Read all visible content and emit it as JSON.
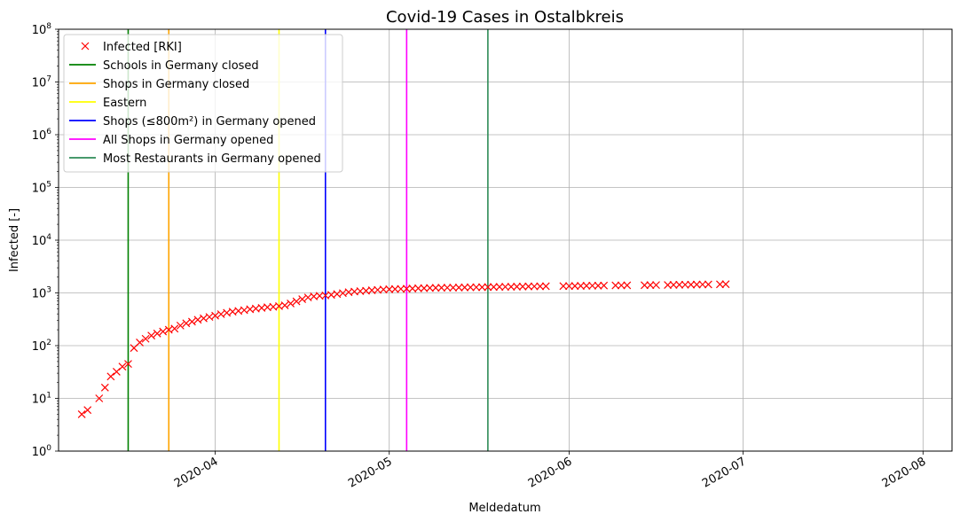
{
  "chart_data": {
    "type": "scatter",
    "title": "Covid-19 Cases in Ostalbkreis",
    "xlabel": "Meldedatum",
    "ylabel": "Infected [-]",
    "y_scale": "log",
    "ylim": [
      1,
      100000000
    ],
    "xlim": [
      "2020-03-05",
      "2020-08-06"
    ],
    "grid": true,
    "legend_position": "upper-left",
    "x_ticks": [
      "2020-04",
      "2020-05",
      "2020-06",
      "2020-07",
      "2020-08"
    ],
    "y_ticks": [
      "10^0",
      "10^1",
      "10^2",
      "10^3",
      "10^4",
      "10^5",
      "10^6",
      "10^7",
      "10^8"
    ],
    "series": [
      {
        "name": "Infected [RKI]",
        "marker": "x",
        "color": "#ff0000",
        "points": [
          [
            "2020-03-09",
            5
          ],
          [
            "2020-03-10",
            6
          ],
          [
            "2020-03-12",
            10
          ],
          [
            "2020-03-13",
            16
          ],
          [
            "2020-03-14",
            26
          ],
          [
            "2020-03-15",
            32
          ],
          [
            "2020-03-16",
            40
          ],
          [
            "2020-03-17",
            45
          ],
          [
            "2020-03-18",
            90
          ],
          [
            "2020-03-19",
            115
          ],
          [
            "2020-03-20",
            135
          ],
          [
            "2020-03-21",
            155
          ],
          [
            "2020-03-22",
            170
          ],
          [
            "2020-03-23",
            185
          ],
          [
            "2020-03-24",
            200
          ],
          [
            "2020-03-25",
            210
          ],
          [
            "2020-03-26",
            240
          ],
          [
            "2020-03-27",
            265
          ],
          [
            "2020-03-28",
            285
          ],
          [
            "2020-03-29",
            310
          ],
          [
            "2020-03-30",
            330
          ],
          [
            "2020-03-31",
            350
          ],
          [
            "2020-04-01",
            370
          ],
          [
            "2020-04-02",
            395
          ],
          [
            "2020-04-03",
            420
          ],
          [
            "2020-04-04",
            440
          ],
          [
            "2020-04-05",
            455
          ],
          [
            "2020-04-06",
            470
          ],
          [
            "2020-04-07",
            490
          ],
          [
            "2020-04-08",
            505
          ],
          [
            "2020-04-09",
            520
          ],
          [
            "2020-04-10",
            535
          ],
          [
            "2020-04-11",
            545
          ],
          [
            "2020-04-12",
            560
          ],
          [
            "2020-04-13",
            580
          ],
          [
            "2020-04-14",
            630
          ],
          [
            "2020-04-15",
            690
          ],
          [
            "2020-04-16",
            760
          ],
          [
            "2020-04-17",
            820
          ],
          [
            "2020-04-18",
            860
          ],
          [
            "2020-04-19",
            880
          ],
          [
            "2020-04-20",
            895
          ],
          [
            "2020-04-21",
            920
          ],
          [
            "2020-04-22",
            950
          ],
          [
            "2020-04-23",
            990
          ],
          [
            "2020-04-24",
            1030
          ],
          [
            "2020-04-25",
            1060
          ],
          [
            "2020-04-26",
            1080
          ],
          [
            "2020-04-27",
            1100
          ],
          [
            "2020-04-28",
            1120
          ],
          [
            "2020-04-29",
            1140
          ],
          [
            "2020-04-30",
            1160
          ],
          [
            "2020-05-01",
            1170
          ],
          [
            "2020-05-02",
            1180
          ],
          [
            "2020-05-03",
            1190
          ],
          [
            "2020-05-04",
            1200
          ],
          [
            "2020-05-05",
            1210
          ],
          [
            "2020-05-06",
            1220
          ],
          [
            "2020-05-07",
            1230
          ],
          [
            "2020-05-08",
            1240
          ],
          [
            "2020-05-09",
            1245
          ],
          [
            "2020-05-10",
            1250
          ],
          [
            "2020-05-11",
            1255
          ],
          [
            "2020-05-12",
            1260
          ],
          [
            "2020-05-13",
            1265
          ],
          [
            "2020-05-14",
            1270
          ],
          [
            "2020-05-15",
            1275
          ],
          [
            "2020-05-16",
            1280
          ],
          [
            "2020-05-17",
            1285
          ],
          [
            "2020-05-18",
            1290
          ],
          [
            "2020-05-19",
            1295
          ],
          [
            "2020-05-20",
            1300
          ],
          [
            "2020-05-21",
            1305
          ],
          [
            "2020-05-22",
            1310
          ],
          [
            "2020-05-23",
            1315
          ],
          [
            "2020-05-24",
            1320
          ],
          [
            "2020-05-25",
            1325
          ],
          [
            "2020-05-26",
            1330
          ],
          [
            "2020-05-27",
            1335
          ],
          [
            "2020-05-28",
            1340
          ],
          [
            "2020-05-31",
            1345
          ],
          [
            "2020-06-01",
            1350
          ],
          [
            "2020-06-02",
            1355
          ],
          [
            "2020-06-03",
            1360
          ],
          [
            "2020-06-04",
            1365
          ],
          [
            "2020-06-05",
            1370
          ],
          [
            "2020-06-06",
            1375
          ],
          [
            "2020-06-07",
            1380
          ],
          [
            "2020-06-09",
            1385
          ],
          [
            "2020-06-10",
            1390
          ],
          [
            "2020-06-11",
            1395
          ],
          [
            "2020-06-14",
            1400
          ],
          [
            "2020-06-15",
            1405
          ],
          [
            "2020-06-16",
            1410
          ],
          [
            "2020-06-18",
            1415
          ],
          [
            "2020-06-19",
            1420
          ],
          [
            "2020-06-20",
            1425
          ],
          [
            "2020-06-21",
            1430
          ],
          [
            "2020-06-22",
            1435
          ],
          [
            "2020-06-23",
            1440
          ],
          [
            "2020-06-24",
            1445
          ],
          [
            "2020-06-25",
            1450
          ],
          [
            "2020-06-27",
            1455
          ],
          [
            "2020-06-28",
            1460
          ]
        ]
      }
    ],
    "vertical_lines": [
      {
        "name": "Schools in Germany closed",
        "date": "2020-03-17",
        "color": "#008000"
      },
      {
        "name": "Shops in Germany closed",
        "date": "2020-03-24",
        "color": "#ffa500"
      },
      {
        "name": "Eastern",
        "date": "2020-04-12",
        "color": "#ffff00"
      },
      {
        "name": "Shops (≤800m²) in Germany opened",
        "date": "2020-04-20",
        "color": "#0000ff"
      },
      {
        "name": "All Shops in Germany opened",
        "date": "2020-05-04",
        "color": "#ff00ff"
      },
      {
        "name": "Most Restaurants in Germany opened",
        "date": "2020-05-18",
        "color": "#2e8b57"
      }
    ]
  }
}
